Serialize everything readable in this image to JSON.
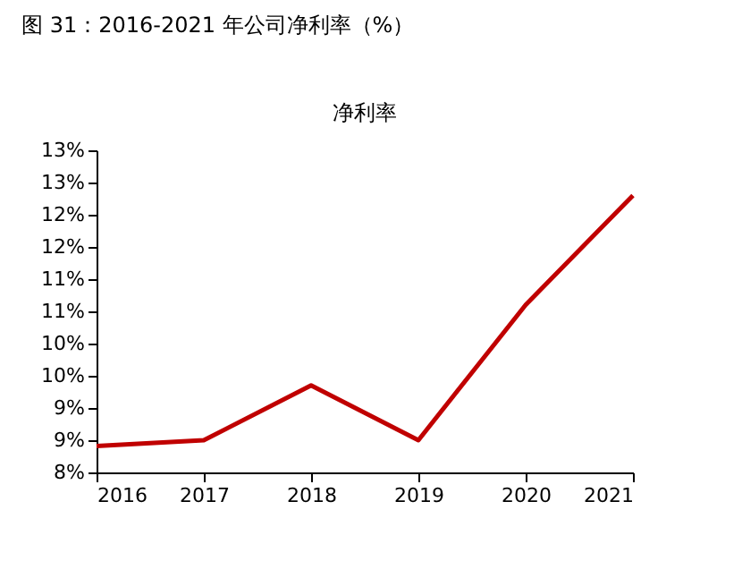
{
  "chart_data": {
    "type": "line",
    "title": "图 31：2016-2021 年公司净利率（%）",
    "subtitle": "净利率",
    "x": [
      2016,
      2017,
      2018,
      2019,
      2020,
      2021
    ],
    "series": [
      {
        "color": "#c00000",
        "values": [
          8.41,
          8.5,
          9.35,
          8.5,
          10.6,
          12.3
        ]
      }
    ],
    "xlim": [
      2016,
      2021
    ],
    "xticks": [
      2016,
      2017,
      2018,
      2019,
      2020,
      2021
    ],
    "ylim": [
      8,
      13
    ],
    "yticks": [
      {
        "value": 8,
        "label": "8%"
      },
      {
        "value": 8.5,
        "label": "9%"
      },
      {
        "value": 9,
        "label": "9%"
      },
      {
        "value": 9.5,
        "label": "10%"
      },
      {
        "value": 10,
        "label": "10%"
      },
      {
        "value": 10.5,
        "label": "11%"
      },
      {
        "value": 11,
        "label": "11%"
      },
      {
        "value": 11.5,
        "label": "12%"
      },
      {
        "value": 12,
        "label": "12%"
      },
      {
        "value": 12.5,
        "label": "13%"
      },
      {
        "value": 13,
        "label": "13%"
      }
    ],
    "grid": false,
    "marker": "none",
    "line_style": "solid"
  }
}
